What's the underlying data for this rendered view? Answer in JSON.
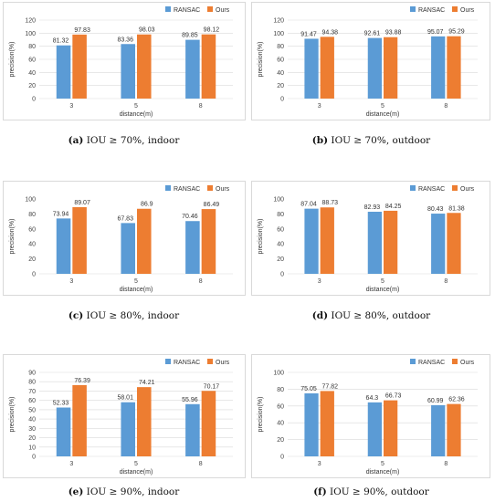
{
  "colors": {
    "ransac": "#5b9bd5",
    "ours": "#ed7d31"
  },
  "captions": [
    {
      "tag": "(a)",
      "text": " IOU ≥ 70%, indoor"
    },
    {
      "tag": "(b)",
      "text": " IOU ≥ 70%, outdoor"
    },
    {
      "tag": "(c)",
      "text": " IOU ≥ 80%, indoor"
    },
    {
      "tag": "(d)",
      "text": " IOU ≥ 80%, outdoor"
    },
    {
      "tag": "(e)",
      "text": " IOU ≥ 90%, indoor"
    },
    {
      "tag": "(f)",
      "text": " IOU ≥ 90%, outdoor"
    }
  ],
  "chart_data": [
    {
      "type": "bar",
      "categories": [
        "3",
        "5",
        "8"
      ],
      "series": [
        {
          "name": "RANSAC",
          "values": [
            81.32,
            83.36,
            89.85
          ]
        },
        {
          "name": "Ours",
          "values": [
            97.83,
            98.03,
            98.12
          ]
        }
      ],
      "value_labels": [
        [
          "81.32",
          "83.36",
          "89.85"
        ],
        [
          "97.83",
          "98.03",
          "98.12"
        ]
      ],
      "yticks": [
        "0",
        "20",
        "40",
        "60",
        "80",
        "100",
        "120"
      ],
      "ylim": [
        0,
        120
      ],
      "xlabel": "distance(m)",
      "ylabel": "precision(%)",
      "legend": "top-right",
      "grid": true
    },
    {
      "type": "bar",
      "categories": [
        "3",
        "5",
        "8"
      ],
      "series": [
        {
          "name": "RANSAC",
          "values": [
            91.47,
            92.61,
            95.07
          ]
        },
        {
          "name": "Ours",
          "values": [
            94.38,
            93.88,
            95.29
          ]
        }
      ],
      "value_labels": [
        [
          "91.47",
          "92.61",
          "95.07"
        ],
        [
          "94.38",
          "93.88",
          "95.29"
        ]
      ],
      "yticks": [
        "0",
        "20",
        "40",
        "60",
        "80",
        "100",
        "120"
      ],
      "ylim": [
        0,
        120
      ],
      "xlabel": "distance(m)",
      "ylabel": "precision(%)",
      "legend": "top-right",
      "grid": true
    },
    {
      "type": "bar",
      "categories": [
        "3",
        "5",
        "8"
      ],
      "series": [
        {
          "name": "RANSAC",
          "values": [
            73.94,
            67.83,
            70.46
          ]
        },
        {
          "name": "Ours",
          "values": [
            89.07,
            86.9,
            86.49
          ]
        }
      ],
      "value_labels": [
        [
          "73.94",
          "67.83",
          "70.46"
        ],
        [
          "89.07",
          "86.9",
          "86.49"
        ]
      ],
      "yticks": [
        "0",
        "20",
        "40",
        "60",
        "80",
        "100"
      ],
      "ylim": [
        0,
        100
      ],
      "xlabel": "distance(m)",
      "ylabel": "precision(%)",
      "legend": "top-right",
      "grid": false
    },
    {
      "type": "bar",
      "categories": [
        "3",
        "5",
        "8"
      ],
      "series": [
        {
          "name": "RANSAC",
          "values": [
            87.04,
            82.93,
            80.43
          ]
        },
        {
          "name": "Ours",
          "values": [
            88.73,
            84.25,
            81.38
          ]
        }
      ],
      "value_labels": [
        [
          "87.04",
          "82.93",
          "80.43"
        ],
        [
          "88.73",
          "84.25",
          "81.38"
        ]
      ],
      "yticks": [
        "0",
        "20",
        "40",
        "60",
        "80",
        "100"
      ],
      "ylim": [
        0,
        100
      ],
      "xlabel": "distance(m)",
      "ylabel": "precision(%)",
      "legend": "top-right",
      "grid": false
    },
    {
      "type": "bar",
      "categories": [
        "3",
        "5",
        "8"
      ],
      "series": [
        {
          "name": "RANSAC",
          "values": [
            52.33,
            58.01,
            55.96
          ]
        },
        {
          "name": "Ours",
          "values": [
            76.39,
            74.21,
            70.17
          ]
        }
      ],
      "value_labels": [
        [
          "52.33",
          "58.01",
          "55.96"
        ],
        [
          "76.39",
          "74.21",
          "70.17"
        ]
      ],
      "yticks": [
        "0",
        "10",
        "20",
        "30",
        "40",
        "50",
        "60",
        "70",
        "80",
        "90"
      ],
      "ylim": [
        0,
        90
      ],
      "xlabel": "distance(m)",
      "ylabel": "precision(%)",
      "legend": "top-right",
      "grid": true
    },
    {
      "type": "bar",
      "categories": [
        "3",
        "5",
        "8"
      ],
      "series": [
        {
          "name": "RANSAC",
          "values": [
            75.05,
            64.3,
            60.99
          ]
        },
        {
          "name": "Ours",
          "values": [
            77.82,
            66.73,
            62.36
          ]
        }
      ],
      "value_labels": [
        [
          "75.05",
          "64.3",
          "60.99"
        ],
        [
          "77.82",
          "66.73",
          "62.36"
        ]
      ],
      "yticks": [
        "0",
        "20",
        "40",
        "60",
        "80",
        "100"
      ],
      "ylim": [
        0,
        100
      ],
      "xlabel": "distance(m)",
      "ylabel": "precision(%)",
      "legend": "top-right",
      "grid": true
    }
  ]
}
